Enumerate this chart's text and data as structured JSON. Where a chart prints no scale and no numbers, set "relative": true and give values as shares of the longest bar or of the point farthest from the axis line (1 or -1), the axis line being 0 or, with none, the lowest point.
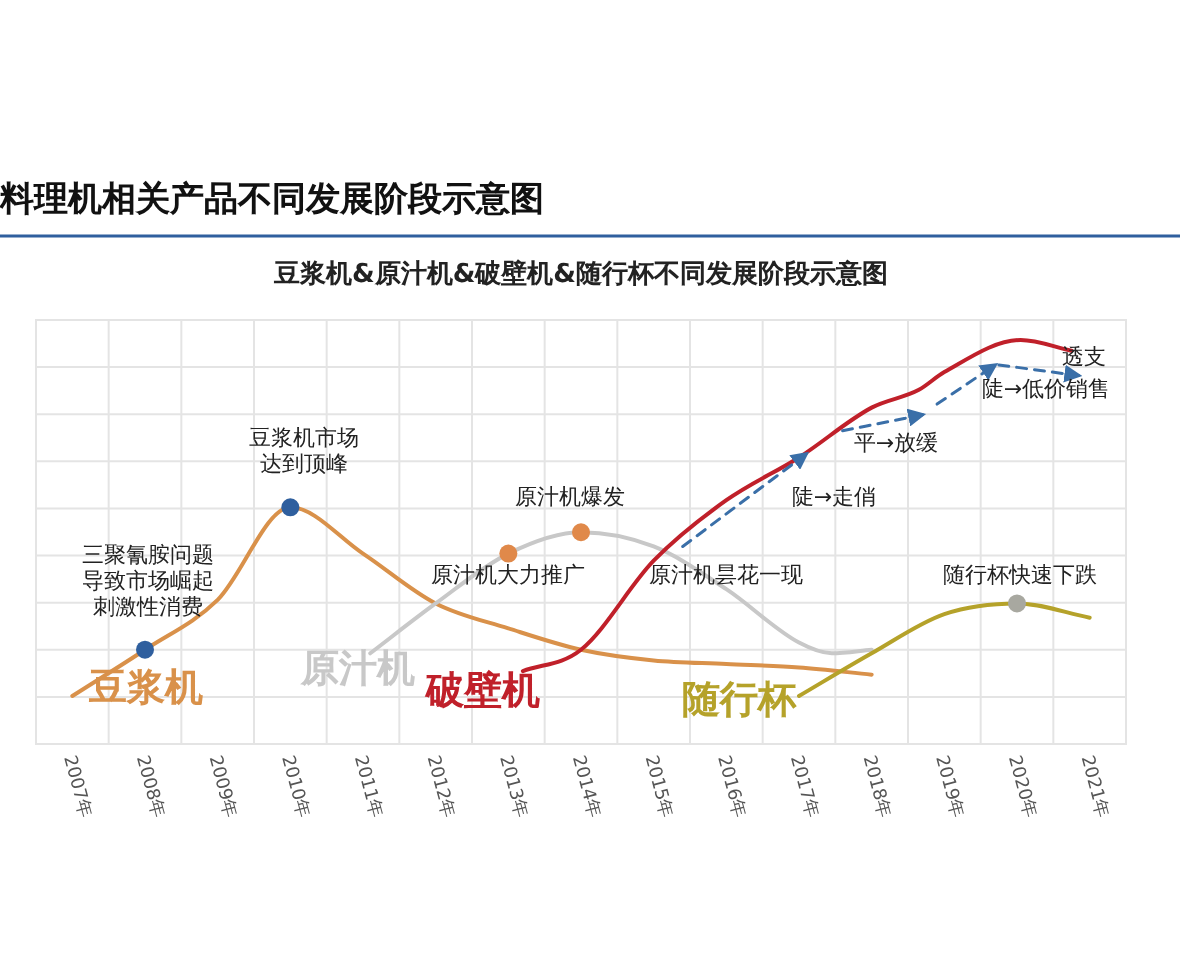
{
  "chart_data": {
    "type": "line",
    "title": "料理机相关产品不同发展阶段示意图",
    "subtitle": "豆浆机&原汁机&破壁机&随行杯不同发展阶段示意图",
    "relative": true,
    "grid": true,
    "legend": false,
    "xlim": [
      2006.5,
      2021.5
    ],
    "xticks": [
      {
        "value": 2007,
        "label": "2007年"
      },
      {
        "value": 2008,
        "label": "2008年"
      },
      {
        "value": 2009,
        "label": "2009年"
      },
      {
        "value": 2010,
        "label": "2010年"
      },
      {
        "value": 2011,
        "label": "2011年"
      },
      {
        "value": 2012,
        "label": "2012年"
      },
      {
        "value": 2013,
        "label": "2013年"
      },
      {
        "value": 2014,
        "label": "2014年"
      },
      {
        "value": 2015,
        "label": "2015年"
      },
      {
        "value": 2016,
        "label": "2016年"
      },
      {
        "value": 2017,
        "label": "2017年"
      },
      {
        "value": 2018,
        "label": "2018年"
      },
      {
        "value": 2019,
        "label": "2019年"
      },
      {
        "value": 2020,
        "label": "2020年"
      },
      {
        "value": 2021,
        "label": "2021年"
      }
    ],
    "series": [
      {
        "name": "豆浆机",
        "color": "#d9914a",
        "x": [
          2007,
          2008,
          2009,
          2010,
          2011,
          2012,
          2013,
          2014,
          2015,
          2016,
          2017,
          2018
        ],
        "values": [
          0.0,
          0.13,
          0.27,
          0.53,
          0.4,
          0.26,
          0.19,
          0.13,
          0.1,
          0.09,
          0.08,
          0.06
        ]
      },
      {
        "name": "原汁机",
        "color": "#c8c8c8",
        "x": [
          2011.1,
          2012,
          2013,
          2014,
          2015,
          2016,
          2017,
          2017.45,
          2018
        ],
        "values": [
          0.12,
          0.26,
          0.4,
          0.46,
          0.42,
          0.3,
          0.15,
          0.12,
          0.13
        ]
      },
      {
        "name": "破壁机",
        "color": "#c0202a",
        "x": [
          2013.2,
          2014,
          2015,
          2016,
          2017,
          2018,
          2018.65,
          2019,
          2020.05,
          2020.75
        ],
        "values": [
          0.07,
          0.13,
          0.38,
          0.55,
          0.67,
          0.81,
          0.86,
          0.91,
          1.0,
          0.97
        ]
      },
      {
        "name": "随行杯",
        "color": "#b5a22a",
        "x": [
          2017,
          2018,
          2019,
          2020,
          2021
        ],
        "values": [
          0.0,
          0.12,
          0.23,
          0.26,
          0.22
        ]
      },
      {
        "type": "scatter",
        "x": [
          2008,
          2010,
          2013,
          2014,
          2020
        ],
        "values": [
          0.13,
          0.53,
          0.4,
          0.46,
          0.26
        ],
        "colors": [
          "#2f5f9e",
          "#2f5f9e",
          "#e0894a",
          "#e0894a",
          "#a8a8a0"
        ]
      },
      {
        "color": "#3a6fa8",
        "line_style": "dashed",
        "x": [
          2015.4,
          2017.1
        ],
        "values": [
          0.42,
          0.68
        ]
      },
      {
        "color": "#3a6fa8",
        "line_style": "dashed",
        "x": [
          2017.6,
          2018.7
        ],
        "values": [
          0.745,
          0.79
        ]
      },
      {
        "color": "#3a6fa8",
        "line_style": "dashed",
        "x": [
          2018.9,
          2019.7
        ],
        "values": [
          0.82,
          0.93
        ]
      },
      {
        "color": "#3a6fa8",
        "line_style": "dashed",
        "x": [
          2019.75,
          2020.85
        ],
        "values": [
          0.93,
          0.9
        ]
      }
    ],
    "annotations": [
      "三聚氰胺问题导致市场崛起刺激性消费",
      "豆浆机市场达到顶峰",
      "原汁机大力推广",
      "原汁机爆发",
      "原汁机昙花一现",
      "陡→走俏",
      "平→放缓",
      "陡→低价销售",
      "透支",
      "随行杯快速下跌"
    ]
  }
}
